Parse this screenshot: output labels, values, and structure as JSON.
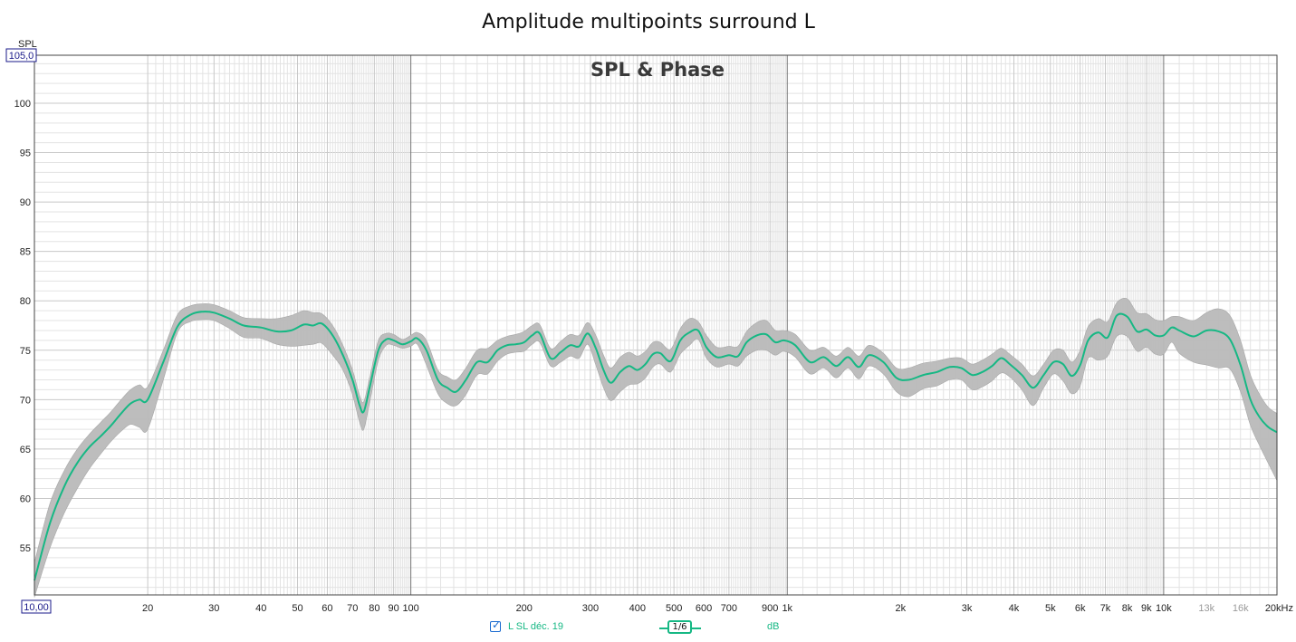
{
  "window": {
    "title": "Amplitude multipoints surround L",
    "subtitle": "SPL & Phase"
  },
  "axes": {
    "y_label": "SPL",
    "y_max_box": "105,0",
    "y_min_box": "10,00",
    "x_unit_suffix": "kHz"
  },
  "legend": {
    "checkbox_checked": true,
    "series_label": "L SL déc. 19",
    "smoothing_label": "1/6",
    "unit_label": "dB"
  },
  "colors": {
    "trace": "#16b884",
    "band": "#b9b9b9",
    "grid_minor": "#e3e3e3",
    "grid_major": "#c8c8c8",
    "grid_decade": "#777777"
  },
  "chart_data": {
    "type": "line",
    "title": "Amplitude multipoints surround L",
    "subtitle": "SPL & Phase",
    "xlabel": "",
    "ylabel": "SPL",
    "x_scale": "log",
    "xlim": [
      10,
      20000
    ],
    "ylim": [
      50,
      105
    ],
    "grid": true,
    "x_ticks": [
      {
        "value": 20,
        "label": "20"
      },
      {
        "value": 30,
        "label": "30"
      },
      {
        "value": 40,
        "label": "40"
      },
      {
        "value": 50,
        "label": "50"
      },
      {
        "value": 60,
        "label": "60"
      },
      {
        "value": 70,
        "label": "70"
      },
      {
        "value": 80,
        "label": "80"
      },
      {
        "value": 90,
        "label": "90"
      },
      {
        "value": 100,
        "label": "100"
      },
      {
        "value": 200,
        "label": "200"
      },
      {
        "value": 300,
        "label": "300"
      },
      {
        "value": 400,
        "label": "400"
      },
      {
        "value": 500,
        "label": "500"
      },
      {
        "value": 600,
        "label": "600"
      },
      {
        "value": 700,
        "label": "700"
      },
      {
        "value": 900,
        "label": "900"
      },
      {
        "value": 1000,
        "label": "1k"
      },
      {
        "value": 2000,
        "label": "2k"
      },
      {
        "value": 3000,
        "label": "3k"
      },
      {
        "value": 4000,
        "label": "4k"
      },
      {
        "value": 5000,
        "label": "5k"
      },
      {
        "value": 6000,
        "label": "6k"
      },
      {
        "value": 7000,
        "label": "7k"
      },
      {
        "value": 8000,
        "label": "8k"
      },
      {
        "value": 9000,
        "label": "9k"
      },
      {
        "value": 10000,
        "label": "10k"
      },
      {
        "value": 13000,
        "label": "13k"
      },
      {
        "value": 16000,
        "label": "16k"
      },
      {
        "value": 20000,
        "label": "20kHz"
      }
    ],
    "y_ticks": [
      55,
      60,
      65,
      70,
      75,
      80,
      85,
      90,
      95,
      100
    ],
    "series": [
      {
        "name": "L SL déc. 19",
        "x": [
          10,
          11,
          12,
          13,
          14,
          15,
          16,
          17,
          18,
          19,
          20,
          22,
          24,
          26,
          28,
          30,
          33,
          36,
          40,
          44,
          48,
          52,
          55,
          58,
          62,
          66,
          70,
          73,
          75,
          78,
          82,
          86,
          90,
          95,
          100,
          104,
          110,
          118,
          125,
          132,
          140,
          150,
          160,
          170,
          180,
          190,
          200,
          210,
          220,
          235,
          250,
          265,
          280,
          295,
          310,
          325,
          340,
          360,
          380,
          400,
          420,
          440,
          460,
          490,
          520,
          550,
          580,
          610,
          650,
          700,
          740,
          780,
          830,
          880,
          930,
          980,
          1050,
          1150,
          1250,
          1350,
          1450,
          1550,
          1650,
          1800,
          1950,
          2100,
          2300,
          2500,
          2700,
          2900,
          3100,
          3300,
          3500,
          3700,
          3900,
          4200,
          4500,
          4800,
          5100,
          5400,
          5700,
          6000,
          6300,
          6700,
          7100,
          7500,
          8000,
          8500,
          9000,
          9500,
          10000,
          10500,
          11000,
          12000,
          13000,
          14000,
          15000,
          16000,
          17000,
          18000,
          19000,
          20000
        ],
        "y": [
          51.7,
          57.5,
          61.2,
          63.6,
          65.2,
          66.3,
          67.4,
          68.6,
          69.6,
          70.0,
          70.0,
          73.8,
          77.4,
          78.6,
          78.9,
          78.8,
          78.2,
          77.5,
          77.3,
          76.9,
          77.0,
          77.6,
          77.5,
          77.7,
          76.5,
          74.5,
          72.0,
          69.5,
          68.8,
          71.5,
          75.0,
          76.1,
          76.0,
          75.6,
          75.9,
          76.2,
          75.0,
          72.0,
          71.2,
          70.8,
          72.0,
          73.8,
          73.8,
          75.0,
          75.5,
          75.6,
          75.8,
          76.5,
          76.7,
          74.2,
          74.8,
          75.5,
          75.4,
          76.7,
          75.2,
          73.0,
          71.7,
          72.8,
          73.4,
          73.0,
          73.6,
          74.6,
          74.7,
          73.9,
          76.0,
          76.8,
          77.0,
          75.3,
          74.3,
          74.5,
          74.4,
          75.8,
          76.5,
          76.6,
          75.8,
          76.0,
          75.5,
          73.8,
          74.3,
          73.4,
          74.3,
          73.3,
          74.5,
          73.8,
          72.2,
          72.0,
          72.5,
          72.8,
          73.3,
          73.2,
          72.5,
          72.8,
          73.4,
          74.2,
          73.6,
          72.5,
          71.2,
          72.5,
          73.8,
          73.6,
          72.4,
          73.5,
          76.0,
          76.8,
          76.3,
          78.5,
          78.4,
          76.9,
          77.1,
          76.5,
          76.5,
          77.3,
          77.0,
          76.4,
          77.0,
          76.9,
          76.1,
          73.5,
          70.0,
          68.2,
          67.2,
          66.7
        ]
      }
    ],
    "band": {
      "name": "",
      "x": [
        10,
        11,
        12,
        13,
        14,
        15,
        16,
        17,
        18,
        19,
        20,
        22,
        24,
        26,
        28,
        30,
        33,
        36,
        40,
        44,
        48,
        52,
        55,
        58,
        62,
        66,
        70,
        73,
        75,
        78,
        82,
        86,
        90,
        95,
        100,
        104,
        110,
        118,
        125,
        132,
        140,
        150,
        160,
        170,
        180,
        190,
        200,
        210,
        220,
        235,
        250,
        265,
        280,
        295,
        310,
        325,
        340,
        360,
        380,
        400,
        420,
        440,
        460,
        490,
        520,
        550,
        580,
        610,
        650,
        700,
        740,
        780,
        830,
        880,
        930,
        980,
        1050,
        1150,
        1250,
        1350,
        1450,
        1550,
        1650,
        1800,
        1950,
        2100,
        2300,
        2500,
        2700,
        2900,
        3100,
        3300,
        3500,
        3700,
        3900,
        4200,
        4500,
        4800,
        5100,
        5400,
        5700,
        6000,
        6300,
        6700,
        7100,
        7500,
        8000,
        8500,
        9000,
        9500,
        10000,
        10500,
        11000,
        12000,
        13000,
        14000,
        15000,
        16000,
        17000,
        18000,
        19000,
        20000
      ],
      "upper": [
        53.5,
        59.5,
        62.8,
        65.0,
        66.5,
        67.7,
        68.8,
        70.0,
        71.0,
        71.5,
        71.3,
        75.0,
        78.6,
        79.5,
        79.7,
        79.6,
        79.0,
        78.3,
        78.2,
        78.2,
        78.5,
        79.0,
        78.8,
        78.7,
        77.5,
        75.5,
        73.0,
        70.5,
        69.8,
        72.5,
        76.0,
        76.7,
        76.6,
        76.1,
        76.5,
        76.8,
        76.0,
        73.0,
        72.3,
        72.0,
        73.2,
        75.0,
        75.2,
        76.0,
        76.4,
        76.6,
        76.9,
        77.5,
        77.6,
        75.2,
        75.9,
        76.6,
        76.5,
        77.8,
        76.5,
        74.5,
        73.2,
        74.3,
        74.8,
        74.4,
        74.9,
        75.8,
        75.8,
        75.1,
        77.2,
        78.2,
        77.9,
        76.5,
        75.3,
        75.4,
        75.4,
        76.9,
        77.8,
        78.0,
        77.0,
        77.0,
        76.6,
        75.0,
        75.3,
        74.4,
        75.3,
        74.4,
        75.5,
        74.7,
        73.2,
        73.2,
        73.7,
        73.9,
        74.2,
        74.2,
        73.6,
        74.0,
        74.6,
        75.2,
        74.6,
        73.6,
        72.4,
        73.6,
        75.0,
        75.0,
        73.8,
        75.0,
        77.4,
        78.2,
        77.9,
        79.8,
        80.2,
        78.8,
        78.7,
        78.1,
        78.0,
        78.4,
        78.4,
        78.0,
        78.8,
        79.2,
        78.5,
        76.0,
        72.5,
        70.5,
        69.2,
        68.6
      ],
      "lower": [
        50.0,
        55.0,
        58.5,
        61.0,
        63.0,
        64.5,
        65.8,
        66.8,
        67.5,
        67.2,
        67.0,
        72.0,
        76.8,
        77.9,
        78.1,
        78.0,
        77.2,
        76.3,
        76.2,
        75.6,
        75.4,
        75.5,
        75.6,
        75.7,
        74.5,
        73.0,
        70.5,
        67.8,
        67.0,
        70.0,
        74.0,
        75.5,
        75.5,
        75.2,
        75.4,
        75.6,
        73.5,
        70.6,
        69.6,
        69.4,
        70.5,
        72.5,
        72.6,
        73.9,
        74.6,
        74.8,
        74.9,
        75.6,
        75.8,
        73.4,
        73.8,
        74.4,
        74.2,
        75.6,
        73.5,
        71.2,
        69.9,
        70.8,
        71.5,
        71.6,
        72.2,
        73.3,
        73.6,
        72.8,
        74.6,
        75.5,
        76.1,
        74.2,
        73.3,
        73.6,
        73.4,
        74.4,
        75.0,
        75.0,
        74.5,
        74.9,
        74.3,
        72.6,
        73.2,
        72.2,
        73.2,
        72.1,
        73.4,
        72.6,
        70.8,
        70.3,
        71.1,
        71.4,
        72.0,
        72.0,
        71.0,
        71.3,
        71.9,
        72.7,
        72.3,
        71.0,
        69.4,
        71.2,
        72.6,
        71.9,
        70.6,
        71.4,
        74.2,
        74.0,
        74.4,
        76.4,
        76.4,
        74.9,
        75.3,
        74.6,
        74.6,
        75.8,
        74.7,
        73.8,
        73.5,
        73.2,
        73.1,
        70.8,
        67.4,
        65.3,
        63.5,
        61.8
      ]
    }
  }
}
